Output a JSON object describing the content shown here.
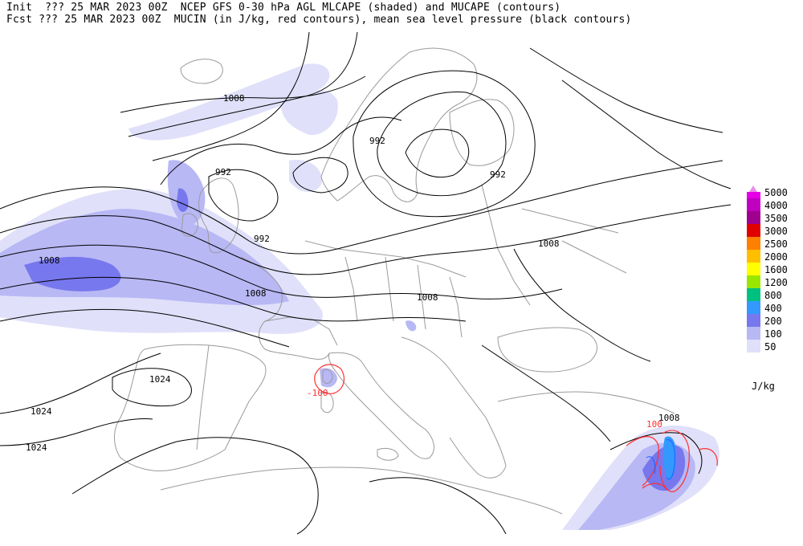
{
  "header": {
    "line1": "Init  ??? 25 MAR 2023 00Z  NCEP GFS 0-30 hPa AGL MLCAPE (shaded) and MUCAPE (contours)",
    "line2": "Fcst ??? 25 MAR 2023 00Z  MUCIN (in J/kg, red contours), mean sea level pressure (black contours)"
  },
  "legend": {
    "units": "J/kg",
    "levels": [
      {
        "label": "5000",
        "color": "#e600e6"
      },
      {
        "label": "4000",
        "color": "#c000c0"
      },
      {
        "label": "3500",
        "color": "#a00090"
      },
      {
        "label": "3000",
        "color": "#e00000"
      },
      {
        "label": "2500",
        "color": "#ff7f00"
      },
      {
        "label": "2000",
        "color": "#ffbf00"
      },
      {
        "label": "1600",
        "color": "#ffff00"
      },
      {
        "label": "1200",
        "color": "#99e600"
      },
      {
        "label": "800",
        "color": "#00c080"
      },
      {
        "label": "400",
        "color": "#3399ff"
      },
      {
        "label": "200",
        "color": "#7777ee"
      },
      {
        "label": "100",
        "color": "#b8b8f5"
      },
      {
        "label": "50",
        "color": "#e0e0fa"
      }
    ]
  },
  "contour_labels": {
    "isobar_1008_nw": "1008",
    "isobar_992_norway": "992",
    "isobar_992_uk": "992",
    "isobar_992_baltic": "992",
    "isobar_992_north_sea": "992",
    "isobar_1008_atlantic": "1008",
    "isobar_1008_france": "1008",
    "isobar_1008_central": "1008",
    "isobar_1008_east": "1008",
    "isobar_1008_levant": "1008",
    "isobar_1024_iberia": "1024",
    "isobar_1024_west": "1024",
    "isobar_1024_sw": "1024",
    "mucin_100_corsica": "-100",
    "mucape_100_levant": "100"
  },
  "colors": {
    "isobar": "#000000",
    "coastline": "#9a9a9a",
    "mucin": "#ff3030",
    "mucape": "#3399ff"
  }
}
